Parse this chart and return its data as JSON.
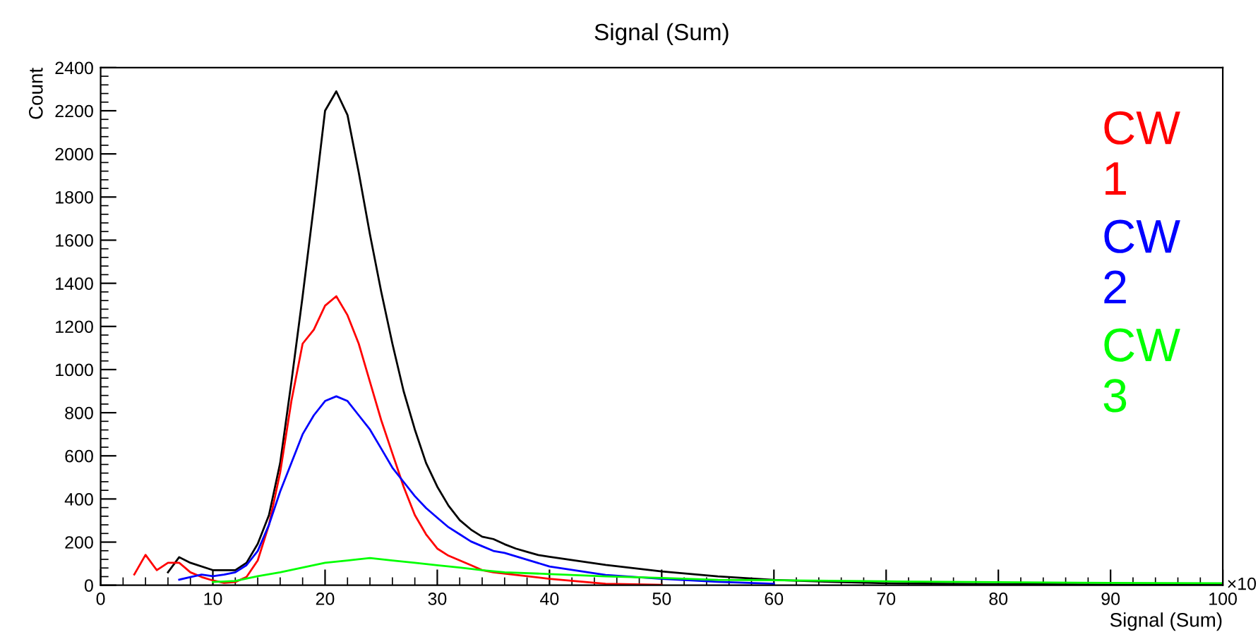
{
  "chart_data": {
    "type": "line",
    "title": "Signal (Sum)",
    "xlabel": "Signal (Sum)",
    "ylabel": "Count",
    "annotations": [
      "×10"
    ],
    "xlim": [
      0,
      100
    ],
    "xticks": [
      0,
      10,
      20,
      30,
      40,
      50,
      60,
      70,
      80,
      90,
      100
    ],
    "ylim": [
      0,
      2400
    ],
    "yticks": [
      0,
      200,
      400,
      600,
      800,
      1000,
      1200,
      1400,
      1600,
      1800,
      2000,
      2200,
      2400
    ],
    "grid": false,
    "legend": "top right",
    "line_style": "solid",
    "marker": "none",
    "series": [
      {
        "color": "#000000",
        "x": [
          6,
          7,
          8,
          10,
          12,
          13,
          14,
          15,
          16,
          17,
          18,
          19,
          20,
          21,
          22,
          23,
          24,
          25,
          26,
          27,
          28,
          29,
          30,
          31,
          32,
          33,
          34,
          35,
          36,
          37,
          38,
          39,
          40,
          45,
          50,
          55,
          60,
          65,
          70,
          80,
          90,
          100
        ],
        "values": [
          60,
          130,
          104,
          70,
          70,
          104,
          192,
          325,
          567,
          943,
          1340,
          1760,
          2200,
          2290,
          2180,
          1914,
          1627,
          1362,
          1120,
          900,
          722,
          567,
          457,
          369,
          302,
          258,
          225,
          214,
          190,
          170,
          155,
          140,
          132,
          94,
          64,
          41,
          25,
          16,
          9,
          5,
          3,
          2
        ]
      },
      {
        "name": "CW\n1",
        "color": "#ff0000",
        "x": [
          3,
          4,
          5,
          6,
          7,
          8,
          9,
          10,
          11,
          12,
          13,
          14,
          15,
          16,
          17,
          18,
          19,
          20,
          21,
          22,
          23,
          24,
          25,
          26,
          27,
          28,
          29,
          30,
          31,
          32,
          33,
          34,
          35,
          40,
          45,
          50
        ],
        "values": [
          50,
          141,
          70,
          104,
          104,
          60,
          38,
          22,
          11,
          15,
          38,
          115,
          280,
          523,
          854,
          1120,
          1185,
          1296,
          1340,
          1252,
          1120,
          943,
          766,
          611,
          457,
          325,
          236,
          170,
          137,
          115,
          93,
          70,
          60,
          30,
          7,
          2
        ]
      },
      {
        "name": "CW\n2",
        "color": "#0000ff",
        "x": [
          7,
          8,
          9,
          10,
          11,
          12,
          13,
          14,
          15,
          16,
          17,
          18,
          19,
          20,
          21,
          22,
          23,
          24,
          25,
          26,
          27,
          28,
          29,
          30,
          31,
          32,
          33,
          34,
          35,
          36,
          40,
          45,
          50,
          55,
          60
        ],
        "values": [
          26,
          38,
          49,
          42,
          49,
          60,
          93,
          159,
          280,
          435,
          567,
          700,
          788,
          854,
          876,
          854,
          788,
          722,
          634,
          545,
          479,
          413,
          358,
          313,
          269,
          236,
          203,
          181,
          159,
          150,
          87,
          48,
          30,
          16,
          7
        ]
      },
      {
        "name": "CW\n3",
        "color": "#00ff00",
        "x": [
          10,
          12,
          14,
          16,
          18,
          20,
          22,
          24,
          26,
          28,
          30,
          32,
          34,
          36,
          40,
          45,
          50,
          55,
          60,
          65,
          70,
          80,
          90,
          100
        ],
        "values": [
          15,
          20,
          42,
          60,
          82,
          104,
          115,
          126,
          115,
          104,
          93,
          82,
          70,
          60,
          52,
          41,
          34,
          25,
          23,
          21,
          18,
          14,
          11,
          9
        ]
      }
    ]
  }
}
